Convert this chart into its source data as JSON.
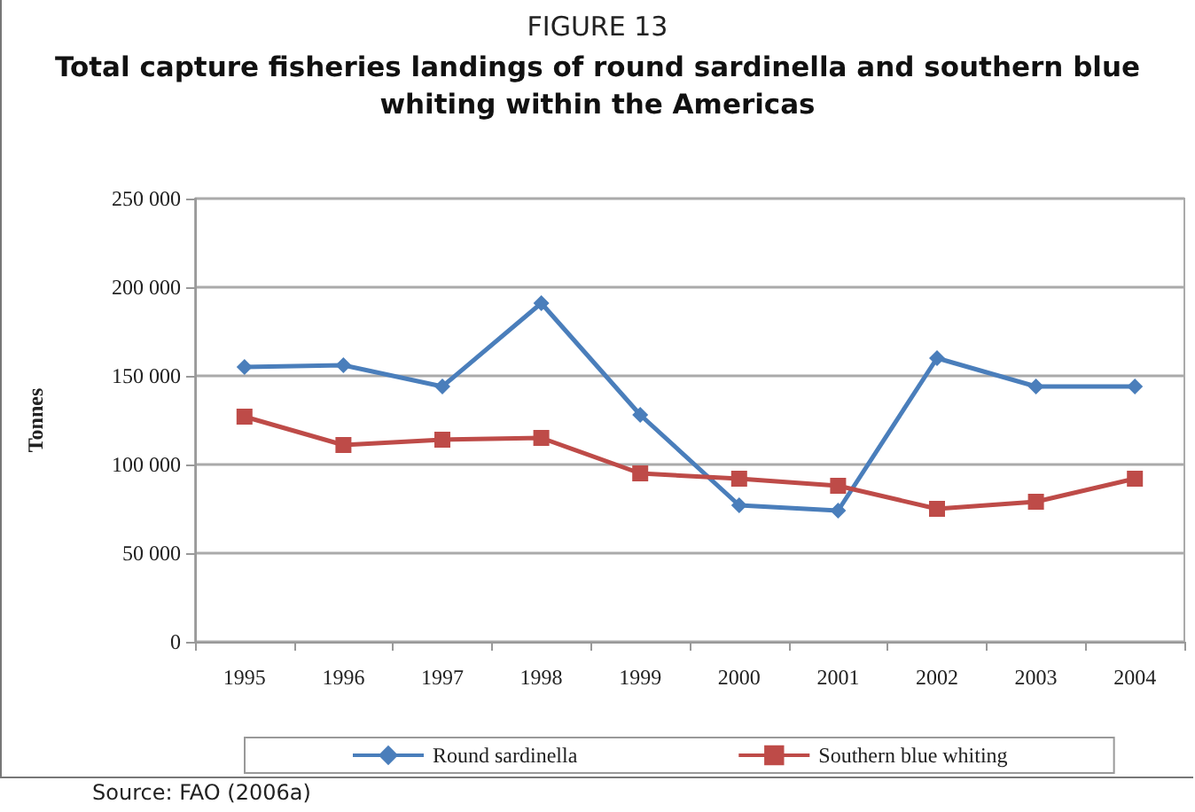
{
  "chart_data": {
    "type": "line",
    "title": "FIGURE 13",
    "subtitle": "Total capture fisheries landings of round sardinella and southern blue whiting within the Americas",
    "ylabel": "Tonnes",
    "categories": [
      "1995",
      "1996",
      "1997",
      "1998",
      "1999",
      "2000",
      "2001",
      "2002",
      "2003",
      "2004"
    ],
    "series": [
      {
        "name": "Round sardinella",
        "color": "#4a7ebb",
        "marker": "diamond",
        "values": [
          155000,
          156000,
          144000,
          191000,
          128000,
          77000,
          74000,
          160000,
          144000,
          144000
        ]
      },
      {
        "name": "Southern blue whiting",
        "color": "#be4b48",
        "marker": "square",
        "values": [
          127000,
          111000,
          114000,
          115000,
          95000,
          92000,
          88000,
          75000,
          79000,
          92000
        ]
      }
    ],
    "ylim": [
      0,
      250000
    ],
    "yticks": [
      {
        "value": 0,
        "label": "0"
      },
      {
        "value": 50000,
        "label": "50 000"
      },
      {
        "value": 100000,
        "label": "100 000"
      },
      {
        "value": 150000,
        "label": "150 000"
      },
      {
        "value": 200000,
        "label": "200 000"
      },
      {
        "value": 250000,
        "label": "250 000"
      }
    ],
    "grid": "y",
    "legend": "bottom",
    "annotations": [
      "Source: FAO (2006a)"
    ]
  }
}
